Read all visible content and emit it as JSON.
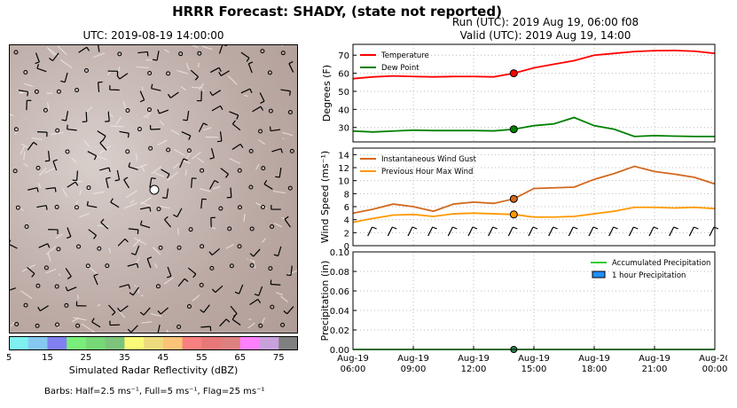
{
  "title": "HRRR Forecast: SHADY, (state not reported)",
  "run_label": "Run (UTC): 2019 Aug 19, 06:00 f08",
  "valid_label": "Valid (UTC): 2019 Aug 19, 14:00",
  "map": {
    "title": "UTC: 2019-08-19 14:00:00",
    "colorbar_ticks": [
      "5",
      "15",
      "25",
      "35",
      "45",
      "55",
      "65",
      "75"
    ],
    "colorbar_colors": [
      "#7ff0f0",
      "#86c8f0",
      "#8080f0",
      "#7aee7a",
      "#77d877",
      "#7cc47c",
      "#fafa78",
      "#eedb7e",
      "#fbc378",
      "#f98080",
      "#e87878",
      "#dd8080",
      "#ff80ff",
      "#c8a0dc",
      "#808080"
    ],
    "colorbar_label": "Simulated Radar Reflectivity (dBZ)",
    "barb_note": "Barbs: Half=2.5 ms⁻¹, Full=5 ms⁻¹, Flag=25 ms⁻¹"
  },
  "chart_data": [
    {
      "type": "line",
      "ylabel": "Degrees (F)",
      "ylim": [
        22,
        76
      ],
      "yticks": [
        30,
        40,
        50,
        60,
        70
      ],
      "x_hours": [
        0,
        1,
        2,
        3,
        4,
        5,
        6,
        7,
        8,
        9,
        10,
        11,
        12,
        13,
        14,
        15,
        16,
        17,
        18
      ],
      "series": [
        {
          "name": "Temperature",
          "color": "#ff0000",
          "values": [
            57,
            58,
            58.5,
            58.2,
            58,
            58.2,
            58.2,
            58,
            60,
            63,
            65,
            67,
            70,
            71,
            72,
            72.5,
            72.6,
            72.2,
            71
          ],
          "marker_index": 8
        },
        {
          "name": "Dew Point",
          "color": "#008000",
          "values": [
            28,
            27.5,
            28,
            28.5,
            28.3,
            28.3,
            28.3,
            28.1,
            29,
            31,
            32,
            35.5,
            31,
            29,
            25,
            25.5,
            25.2,
            25,
            25
          ],
          "marker_index": 8
        }
      ],
      "legend": "top-left",
      "grid": true
    },
    {
      "type": "line",
      "ylabel": "Wind Speed (ms⁻¹)",
      "ylim": [
        0,
        15
      ],
      "yticks": [
        0,
        2,
        4,
        6,
        8,
        10,
        12,
        14
      ],
      "x_hours": [
        0,
        1,
        2,
        3,
        4,
        5,
        6,
        7,
        8,
        9,
        10,
        11,
        12,
        13,
        14,
        15,
        16,
        17,
        18
      ],
      "series": [
        {
          "name": "Instantaneous Wind Gust",
          "color": "#d2691e",
          "values": [
            5,
            5.6,
            6.4,
            6.0,
            5.3,
            6.4,
            6.7,
            6.5,
            7.2,
            8.8,
            8.9,
            9.0,
            10.2,
            11.1,
            12.2,
            11.4,
            11.0,
            10.5,
            9.5
          ],
          "marker_index": 8
        },
        {
          "name": "Previous Hour Max Wind",
          "color": "#ff9900",
          "values": [
            3.6,
            4.2,
            4.7,
            4.8,
            4.5,
            4.9,
            5.0,
            4.9,
            4.8,
            4.4,
            4.4,
            4.5,
            4.9,
            5.3,
            5.9,
            5.9,
            5.8,
            5.9,
            5.7
          ],
          "marker_index": 8
        }
      ],
      "legend": "top-left",
      "grid": true
    },
    {
      "type": "bar",
      "ylabel": "Precipitation (in)",
      "ylim": [
        0,
        0.1
      ],
      "yticks": [
        "0.00",
        "0.02",
        "0.04",
        "0.06",
        "0.08",
        "0.10"
      ],
      "x_hours": [
        0,
        1,
        2,
        3,
        4,
        5,
        6,
        7,
        8,
        9,
        10,
        11,
        12,
        13,
        14,
        15,
        16,
        17,
        18
      ],
      "series": [
        {
          "name": "Accumulated Precipitation",
          "color": "#32cd32",
          "values": [
            0,
            0,
            0,
            0,
            0,
            0,
            0,
            0,
            0,
            0,
            0,
            0,
            0,
            0,
            0,
            0,
            0,
            0,
            0
          ]
        },
        {
          "name": "1 hour Precipitation",
          "color": "#1e90ff",
          "values": [
            0,
            0,
            0,
            0,
            0,
            0,
            0,
            0,
            0,
            0,
            0,
            0,
            0,
            0,
            0,
            0,
            0,
            0,
            0
          ]
        }
      ],
      "legend": "top-right",
      "grid": true,
      "xtick_labels": [
        "Aug-19\n06:00",
        "Aug-19\n09:00",
        "Aug-19\n12:00",
        "Aug-19\n15:00",
        "Aug-19\n18:00",
        "Aug-19\n21:00",
        "Aug-20\n00:00"
      ]
    }
  ]
}
